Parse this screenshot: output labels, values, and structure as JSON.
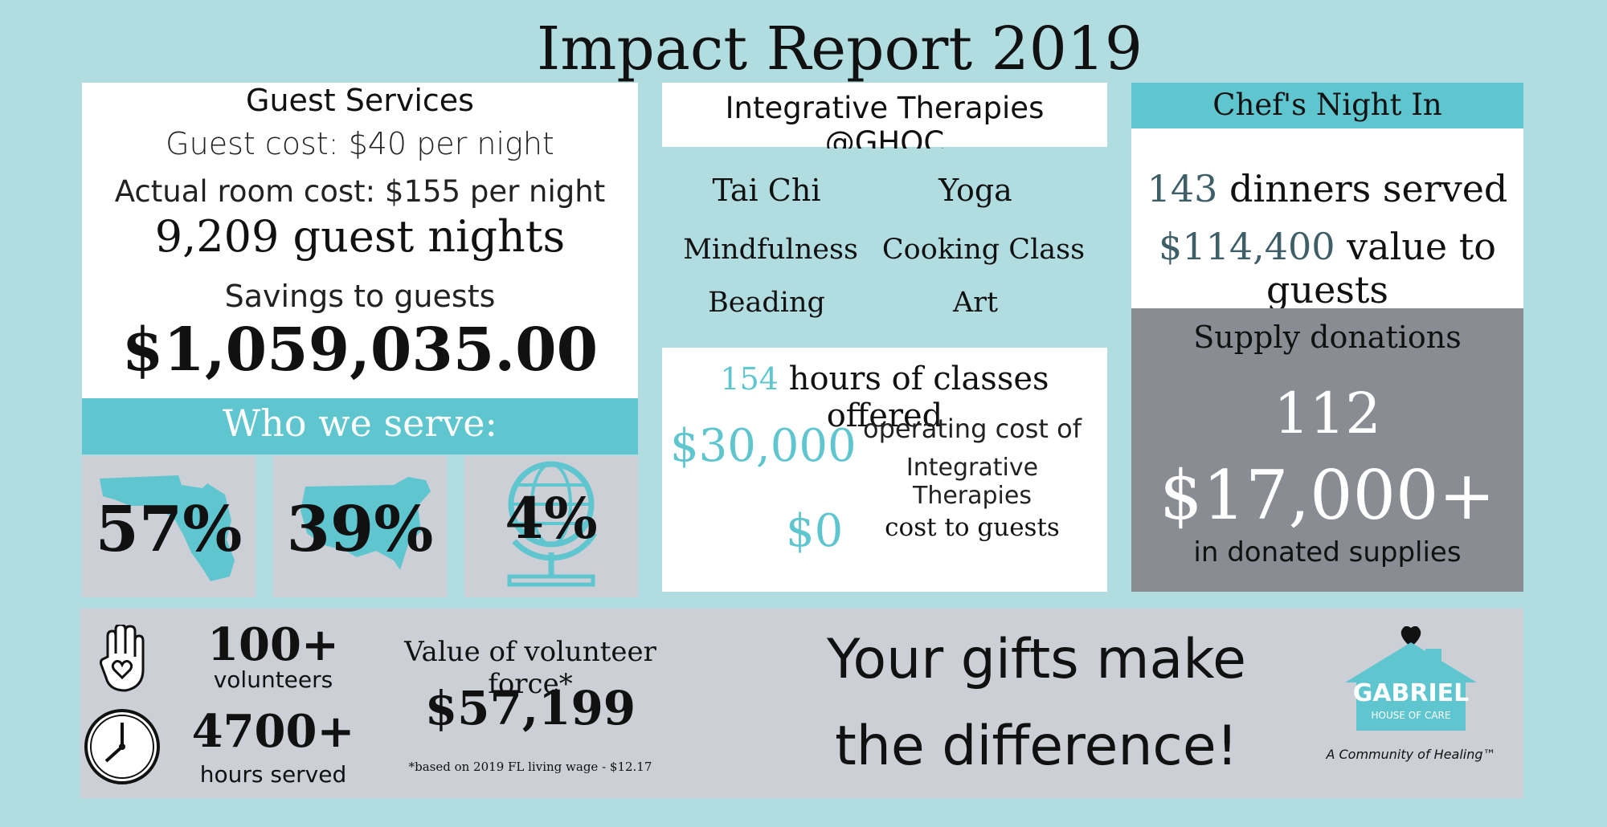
{
  "title": "Impact Report 2019",
  "guest_services": {
    "heading": "Guest Services",
    "guest_cost": "Guest cost: $40 per night",
    "actual_cost": "Actual room cost: $155 per night",
    "nights": "9,209 guest nights",
    "savings_label": "Savings to guests",
    "savings_value": "$1,059,035.00"
  },
  "who_we_serve": {
    "heading": "Who we serve:",
    "items": [
      {
        "value": "57%",
        "icon": "florida-map-icon"
      },
      {
        "value": "39%",
        "icon": "usa-map-icon"
      },
      {
        "value": "4%",
        "icon": "globe-icon"
      }
    ]
  },
  "therapies": {
    "heading": "Integrative Therapies @GHOC",
    "classes": [
      "Tai Chi",
      "Yoga",
      "Mindfulness",
      "Cooking Class",
      "Beading",
      "Art"
    ],
    "hours_number": "154",
    "hours_text": "hours of classes offered",
    "operating_value": "$30,000",
    "operating_line1": "operating cost of",
    "operating_line2": "Integrative Therapies",
    "cost_value": "$0",
    "cost_text": "cost to guests"
  },
  "chefs_night": {
    "heading": "Chef's Night In",
    "dinners_number": "143",
    "dinners_text": "dinners served",
    "value_number": "$114,400",
    "value_text": "value to guests"
  },
  "supply": {
    "heading": "Supply donations",
    "count": "112",
    "value": "$17,000+",
    "caption": "in donated supplies"
  },
  "volunteers": {
    "count": "100+",
    "count_label": "volunteers",
    "hours": "4700+",
    "hours_label": "hours served",
    "value_label": "Value of volunteer force*",
    "value": "$57,199",
    "footnote": "*based on 2019 FL living wage - $12.17",
    "icon_hand": "raised-hand-heart-icon",
    "icon_clock": "clock-icon"
  },
  "tagline": {
    "line1": "Your gifts make",
    "line2": "the difference!"
  },
  "logo": {
    "name": "GABRIEL",
    "sub": "HOUSE OF CARE",
    "tagline": "A Community of Healing™"
  },
  "colors": {
    "background": "#b1dde0",
    "accent": "#5fc6d0",
    "panel_gray": "#cccfd6",
    "supply_gray": "#8a8c93"
  }
}
